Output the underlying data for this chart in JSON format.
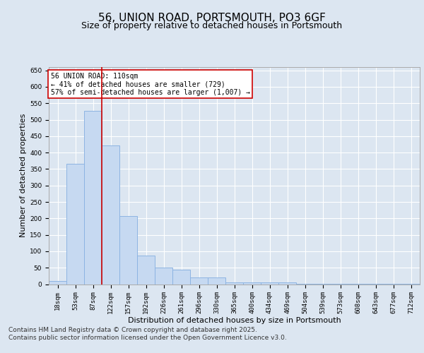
{
  "title_line1": "56, UNION ROAD, PORTSMOUTH, PO3 6GF",
  "title_line2": "Size of property relative to detached houses in Portsmouth",
  "xlabel": "Distribution of detached houses by size in Portsmouth",
  "ylabel": "Number of detached properties",
  "categories": [
    "18sqm",
    "53sqm",
    "87sqm",
    "122sqm",
    "157sqm",
    "192sqm",
    "226sqm",
    "261sqm",
    "296sqm",
    "330sqm",
    "365sqm",
    "400sqm",
    "434sqm",
    "469sqm",
    "504sqm",
    "539sqm",
    "573sqm",
    "608sqm",
    "643sqm",
    "677sqm",
    "712sqm"
  ],
  "values": [
    10,
    365,
    527,
    422,
    207,
    88,
    50,
    43,
    20,
    20,
    5,
    5,
    5,
    5,
    2,
    2,
    2,
    2,
    1,
    1,
    1
  ],
  "bar_color": "#c6d9f1",
  "bar_edge_color": "#8db4e2",
  "background_color": "#dce6f1",
  "plot_bg_color": "#dce6f1",
  "grid_color": "#ffffff",
  "vline_x_idx": 2.5,
  "vline_color": "#cc0000",
  "annotation_text": "56 UNION ROAD: 110sqm\n← 41% of detached houses are smaller (729)\n57% of semi-detached houses are larger (1,007) →",
  "annotation_box_color": "#ffffff",
  "annotation_box_edge": "#cc0000",
  "ylim": [
    0,
    660
  ],
  "yticks": [
    0,
    50,
    100,
    150,
    200,
    250,
    300,
    350,
    400,
    450,
    500,
    550,
    600,
    650
  ],
  "footer_line1": "Contains HM Land Registry data © Crown copyright and database right 2025.",
  "footer_line2": "Contains public sector information licensed under the Open Government Licence v3.0.",
  "title_fontsize": 11,
  "subtitle_fontsize": 9,
  "tick_fontsize": 6.5,
  "label_fontsize": 8,
  "footer_fontsize": 6.5,
  "annot_fontsize": 7
}
